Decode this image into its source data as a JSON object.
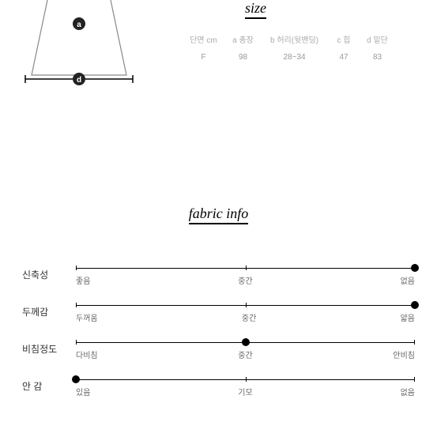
{
  "size": {
    "title": "size",
    "headers": [
      "단면 cm",
      "a 총장",
      "b 허리(뒷밴딩)",
      "c 힙",
      "d 밑단"
    ],
    "row": [
      "F",
      "98",
      "28~34",
      "47",
      "83"
    ]
  },
  "fabric": {
    "title": "fabric info",
    "rows": [
      {
        "label": "신축성",
        "options": [
          "좋음",
          "중간",
          "없음"
        ],
        "dotPosition": 100
      },
      {
        "label": "두께감",
        "options": [
          "두꺼움",
          "중간",
          "얇음"
        ],
        "dotPosition": 100
      },
      {
        "label": "비침정도",
        "options": [
          "다비침",
          "중간",
          "안비침"
        ],
        "dotPosition": 50
      },
      {
        "label": "안 감",
        "options": [
          "있음",
          "기모",
          "없음"
        ],
        "dotPosition": 0
      }
    ]
  },
  "colors": {
    "text": "#333333",
    "muted": "#999999",
    "line": "#000000",
    "bg": "#ffffff"
  }
}
